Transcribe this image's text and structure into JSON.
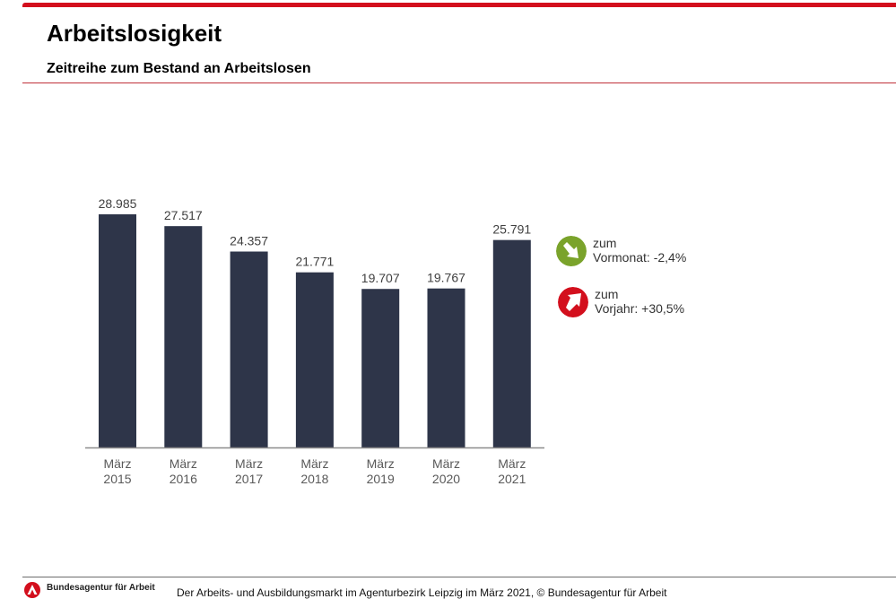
{
  "header": {
    "title": "Arbeitslosigkeit",
    "subtitle": "Zeitreihe zum Bestand an Arbeitslosen"
  },
  "colors": {
    "accent_red": "#d30f1d",
    "bar": "#2e3549",
    "down_green": "#7aa32b",
    "up_red": "#d30f1d"
  },
  "chart_data": {
    "type": "bar",
    "title": "Zeitreihe zum Bestand an Arbeitslosen",
    "xlabel": "",
    "ylabel": "",
    "categories": [
      "März\n2015",
      "März\n2016",
      "März\n2017",
      "März\n2018",
      "März\n2019",
      "März\n2020",
      "März\n2021"
    ],
    "category_lines": [
      [
        "März",
        "2015"
      ],
      [
        "März",
        "2016"
      ],
      [
        "März",
        "2017"
      ],
      [
        "März",
        "2018"
      ],
      [
        "März",
        "2019"
      ],
      [
        "März",
        "2020"
      ],
      [
        "März",
        "2021"
      ]
    ],
    "values": [
      28985,
      27517,
      24357,
      21771,
      19707,
      19767,
      25791
    ],
    "data_labels": [
      "28.985",
      "27.517",
      "24.357",
      "21.771",
      "19.707",
      "19.767",
      "25.791"
    ],
    "ylim": [
      0,
      28985
    ],
    "grid": false,
    "legend": "none"
  },
  "changes": [
    {
      "icon": "arrow-down-right-icon",
      "line1": "zum",
      "line2": "Vormonat:",
      "value": "-2,4%"
    },
    {
      "icon": "arrow-up-right-icon",
      "line1": "zum",
      "line2": "Vorjahr:",
      "value": "+30,5%"
    }
  ],
  "footer": {
    "org_name": "Bundesagentur für Arbeit",
    "text": "Der Arbeits- und Ausbildungsmarkt im Agenturbezirk Leipzig im März 2021, © Bundesagentur für Arbeit"
  }
}
